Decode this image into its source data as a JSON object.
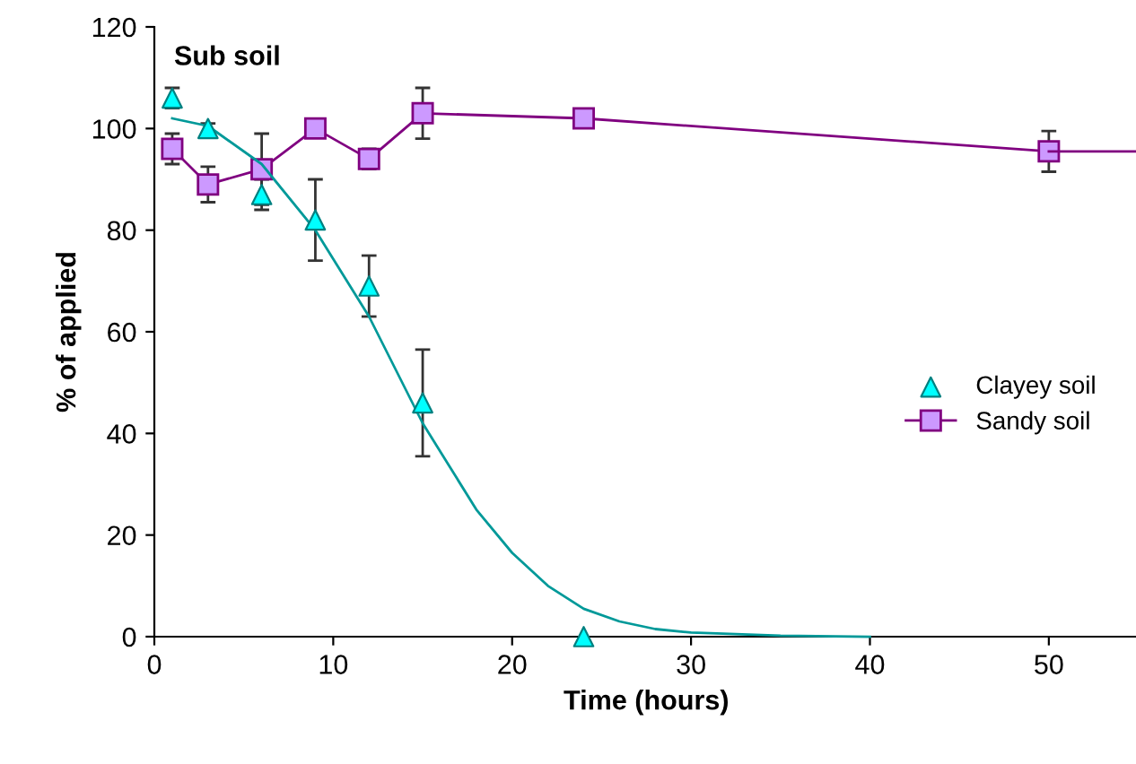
{
  "chart_data": {
    "type": "line",
    "title": "Sub soil",
    "xlabel": "Time (hours)",
    "ylabel": "% of applied",
    "xlim": [
      0,
      55
    ],
    "xticks": [
      0,
      10,
      20,
      30,
      40,
      50
    ],
    "ylim": [
      0,
      120
    ],
    "yticks": [
      0,
      20,
      40,
      60,
      80,
      100,
      120
    ],
    "grid": false,
    "legend": "right",
    "series": [
      {
        "name": "Clayey soil",
        "type": "scatter",
        "marker": "triangle",
        "color": "#00ffff",
        "x": [
          1,
          3,
          6,
          9,
          12,
          15,
          24
        ],
        "values": [
          106,
          100,
          87,
          82,
          69,
          46,
          0
        ],
        "errors": [
          2,
          1,
          3,
          8,
          6,
          10.5,
          null
        ]
      },
      {
        "name": "Sandy soil",
        "marker": "square",
        "color": "#cc99ff",
        "x": [
          1,
          3,
          6,
          9,
          12,
          15,
          24,
          50
        ],
        "values": [
          96,
          89,
          92,
          100,
          94,
          103,
          102,
          95.5
        ],
        "errors": [
          3,
          3.5,
          7,
          null,
          2,
          5,
          null,
          4
        ]
      },
      {
        "marker": "none",
        "color": "#800080",
        "x": [
          50,
          55
        ],
        "values": [
          95.5,
          95.5
        ]
      },
      {
        "marker": "none",
        "color": "#009999",
        "x": [
          1,
          3,
          6,
          9,
          12,
          15,
          18,
          20,
          22,
          24,
          26,
          28,
          30,
          35,
          40
        ],
        "values": [
          102,
          100.5,
          93,
          80,
          63,
          42,
          25,
          16.5,
          10,
          5.5,
          3,
          1.5,
          0.8,
          0.2,
          0
        ]
      }
    ]
  }
}
